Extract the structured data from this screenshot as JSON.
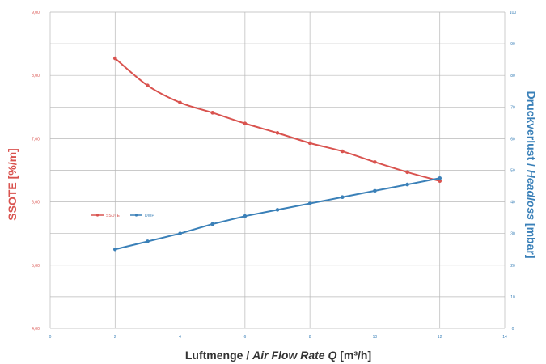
{
  "chart_data": {
    "type": "line",
    "xlabel_prefix": "Luftmenge / ",
    "xlabel_italic": "Air Flow Rate Q",
    "xlabel_suffix": " [m³/h]",
    "ylabel_left": "SSOTE [%/m]",
    "ylabel_right_prefix": "Druckverlust / ",
    "ylabel_right_italic": "Headloss",
    "ylabel_right_suffix": " [mbar]",
    "xlim": [
      0,
      14
    ],
    "ylim_left": [
      4.0,
      9.0
    ],
    "ylim_right": [
      0,
      100
    ],
    "x_ticks": [
      "0",
      "2",
      "4",
      "6",
      "8",
      "10",
      "12",
      "14"
    ],
    "y_left_ticks": [
      "4,00",
      "5,00",
      "6,00",
      "7,00",
      "8,00",
      "9,00"
    ],
    "y_right_ticks": [
      "0",
      "10",
      "20",
      "30",
      "40",
      "50",
      "60",
      "70",
      "80",
      "90",
      "100"
    ],
    "grid": true,
    "legend_placement": "left",
    "colors": {
      "ssote": "#d9534f",
      "dwp": "#3a80b8",
      "grid": "#b8b8b8"
    },
    "series": [
      {
        "name": "SSOTE",
        "axis": "left",
        "x": [
          2,
          3,
          4,
          5,
          6,
          7,
          8,
          9,
          10,
          11,
          12
        ],
        "values": [
          8.27,
          7.84,
          7.57,
          7.41,
          7.24,
          7.09,
          6.93,
          6.8,
          6.63,
          6.47,
          6.33
        ]
      },
      {
        "name": "DWP",
        "axis": "right",
        "x": [
          2,
          3,
          4,
          5,
          6,
          7,
          8,
          9,
          10,
          11,
          12
        ],
        "values": [
          25,
          27.5,
          30,
          33,
          35.5,
          37.5,
          39.5,
          41.5,
          43.5,
          45.5,
          47.5
        ]
      }
    ]
  }
}
